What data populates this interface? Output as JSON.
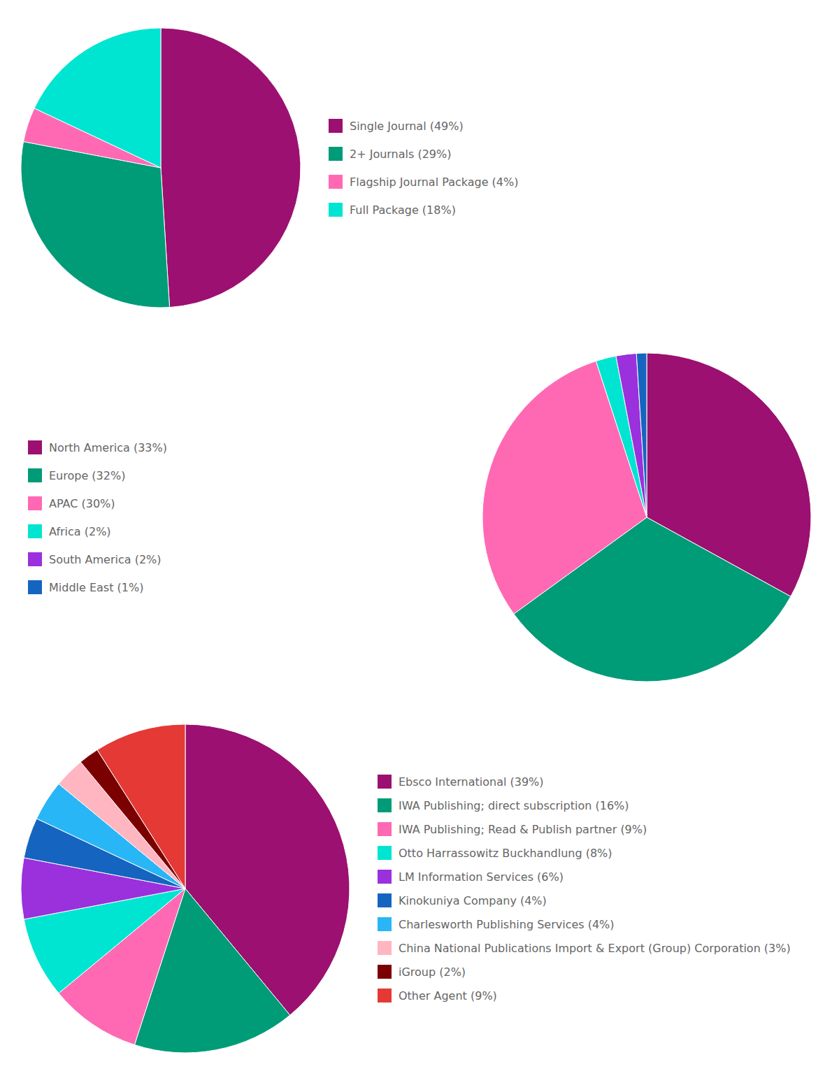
{
  "chart_data": [
    {
      "type": "pie",
      "categories": [
        "Single Journal (49%)",
        "2+ Journals (29%)",
        "Flagship Journal Package (4%)",
        "Full Package (18%)"
      ],
      "values": [
        49,
        29,
        4,
        18
      ],
      "colors": [
        "#9B1070",
        "#009B77",
        "#FF69B4",
        "#00E5D1"
      ],
      "legend": "right"
    },
    {
      "type": "pie",
      "categories": [
        "North America (33%)",
        "Europe (32%)",
        "APAC (30%)",
        "Africa (2%)",
        "South America (2%)",
        "Middle East (1%)"
      ],
      "values": [
        33,
        32,
        30,
        2,
        2,
        1
      ],
      "colors": [
        "#9B1070",
        "#009B77",
        "#FF69B4",
        "#00E5D1",
        "#9B30DD",
        "#1565C0"
      ],
      "legend": "left"
    },
    {
      "type": "pie",
      "categories": [
        "Ebsco International (39%)",
        "IWA Publishing; direct subscription (16%)",
        "IWA Publishing; Read & Publish partner (9%)",
        "Otto Harrassowitz Buckhandlung (8%)",
        "LM Information Services (6%)",
        "Kinokuniya Company (4%)",
        "Charlesworth Publishing Services (4%)",
        "China National Publications Import & Export (Group) Corporation (3%)",
        "iGroup (2%)",
        "Other Agent (9%)"
      ],
      "values": [
        39,
        16,
        9,
        8,
        6,
        4,
        4,
        3,
        2,
        9
      ],
      "colors": [
        "#9B1070",
        "#009B77",
        "#FF69B4",
        "#00E5D1",
        "#9B30DD",
        "#1565C0",
        "#29B6F6",
        "#FFB6C1",
        "#7B0000",
        "#E53935"
      ],
      "legend": "right"
    }
  ]
}
